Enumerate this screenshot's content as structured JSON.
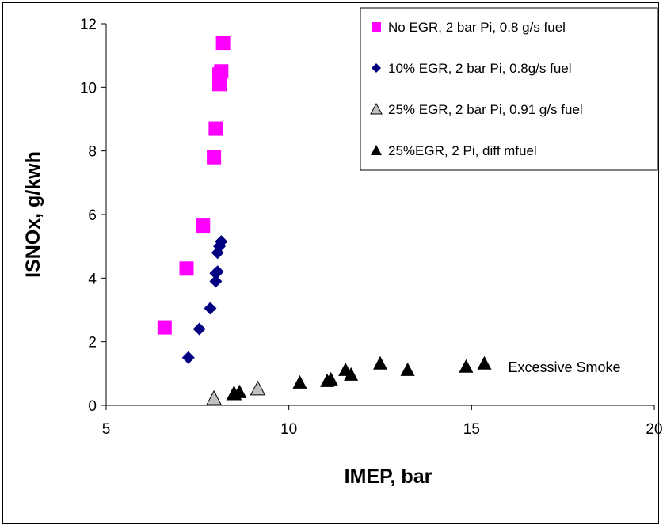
{
  "chart_data": {
    "type": "scatter",
    "xlabel": "IMEP, bar",
    "ylabel": "ISNOx, g/kwh",
    "xlim": [
      5,
      20
    ],
    "ylim": [
      0,
      12
    ],
    "xticks": [
      5,
      10,
      15,
      20
    ],
    "yticks": [
      0,
      2,
      4,
      6,
      8,
      10,
      12
    ],
    "grid": false,
    "legend_position": "top-right",
    "series": [
      {
        "name": "No EGR, 2 bar Pi, 0.8 g/s fuel",
        "marker": "square",
        "color": "#ff00ff",
        "points": [
          [
            6.6,
            2.45
          ],
          [
            7.2,
            4.3
          ],
          [
            7.65,
            5.65
          ],
          [
            7.95,
            7.8
          ],
          [
            8.0,
            8.7
          ],
          [
            8.1,
            10.1
          ],
          [
            8.1,
            10.4
          ],
          [
            8.15,
            10.5
          ],
          [
            8.2,
            11.4
          ]
        ]
      },
      {
        "name": "10% EGR, 2 bar Pi, 0.8g/s fuel",
        "marker": "diamond",
        "color": "#000080",
        "points": [
          [
            7.25,
            1.5
          ],
          [
            7.55,
            2.4
          ],
          [
            7.85,
            3.05
          ],
          [
            8.0,
            3.9
          ],
          [
            8.0,
            4.15
          ],
          [
            8.05,
            4.2
          ],
          [
            8.05,
            4.8
          ],
          [
            8.1,
            5.0
          ],
          [
            8.15,
            5.15
          ]
        ]
      },
      {
        "name": "25% EGR, 2 bar Pi, 0.91 g/s fuel",
        "marker": "triangle-open",
        "color": "#c0c0c0",
        "points": [
          [
            7.95,
            0.2
          ],
          [
            8.5,
            0.35
          ],
          [
            9.15,
            0.5
          ]
        ]
      },
      {
        "name": "25%EGR, 2 Pi, diff mfuel",
        "marker": "triangle",
        "color": "#000000",
        "points": [
          [
            8.5,
            0.35
          ],
          [
            8.65,
            0.4
          ],
          [
            10.3,
            0.7
          ],
          [
            11.05,
            0.75
          ],
          [
            11.15,
            0.8
          ],
          [
            11.55,
            1.1
          ],
          [
            11.7,
            0.95
          ],
          [
            12.5,
            1.3
          ],
          [
            13.25,
            1.1
          ],
          [
            14.85,
            1.2
          ],
          [
            15.35,
            1.3
          ]
        ]
      }
    ],
    "annotations": [
      {
        "text": "Excessive Smoke",
        "x": 16.0,
        "y": 1.2
      }
    ]
  }
}
